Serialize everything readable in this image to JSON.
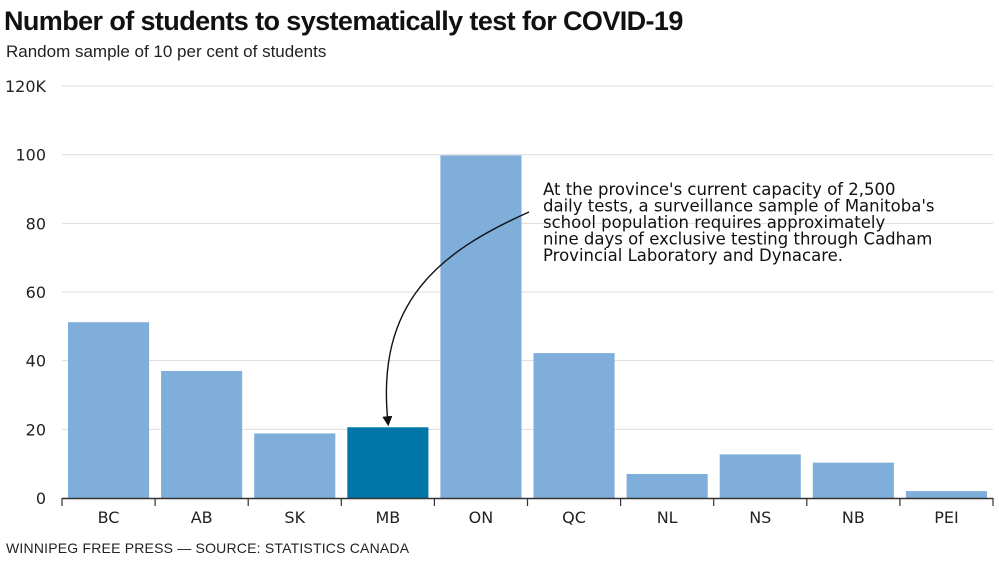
{
  "chart_data": {
    "type": "bar",
    "title": "Number of students to systematically test for COVID-19",
    "subtitle": "Random sample of 10 per cent of students",
    "categories": [
      "BC",
      "AB",
      "SK",
      "MB",
      "ON",
      "QC",
      "NL",
      "NS",
      "NB",
      "PEI"
    ],
    "values": [
      51.2,
      37.0,
      18.8,
      20.6,
      99.8,
      42.2,
      7.0,
      12.7,
      10.3,
      2.0
    ],
    "highlight": "MB",
    "ylim": [
      0,
      120
    ],
    "yticks": [
      0,
      20,
      40,
      60,
      80,
      100,
      120
    ],
    "ytick_labels": [
      "0",
      "20",
      "40",
      "60",
      "80",
      "100",
      "120K"
    ],
    "xlabel": "",
    "ylabel": "",
    "grid": true,
    "annotation": {
      "target": "MB",
      "lines": [
        "At the province's current capacity of 2,500",
        "daily tests, a surveillance sample of Manitoba's",
        "school population requires approximately",
        "nine days of exclusive testing through Cadham",
        "Provincial Laboratory and Dynacare."
      ]
    },
    "colors": {
      "bar": "#7eaed9",
      "highlight": "#0076a8",
      "grid": "#dddddd",
      "axis": "#333333"
    }
  },
  "footer": {
    "source": "WINNIPEG FREE PRESS — SOURCE: STATISTICS CANADA"
  }
}
